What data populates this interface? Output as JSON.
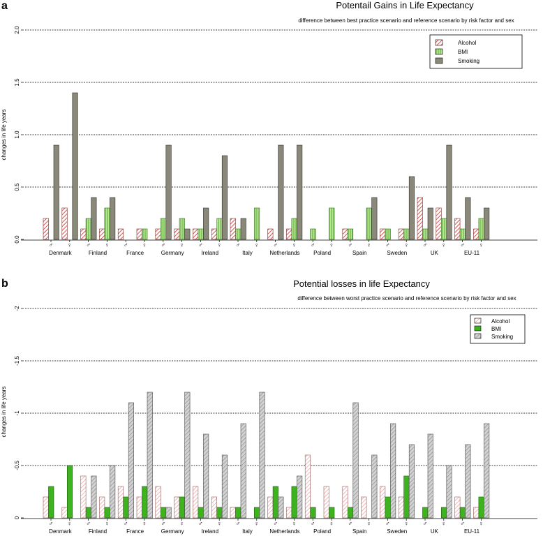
{
  "colors": {
    "a_alcohol": "#d9534f",
    "a_bmi": "#8fd16a",
    "a_smoking": "#8a8878",
    "b_alcohol": "#e8a0a0",
    "b_bmi": "#3fb31f",
    "b_smoking": "#a8a8a8"
  },
  "chart_data": [
    {
      "type": "bar",
      "panel_label": "a",
      "title": "Potentail Gains in Life Expectancy",
      "subtitle": "difference between best practice scenario and reference scenario by risk factor and sex",
      "ylabel": "changes in life years",
      "xlabel": "",
      "ylim": [
        0,
        2.0
      ],
      "yticks": [
        "0.0",
        "0.5",
        "1.0",
        "1.5",
        "2.0"
      ],
      "ytick_values": [
        0,
        0.5,
        1.0,
        1.5,
        2.0
      ],
      "grid": true,
      "legend_position": "top-right",
      "countries": [
        "Denmark",
        "Finland",
        "France",
        "Germany",
        "Ireland",
        "Italy",
        "Netherlands",
        "Poland",
        "Spain",
        "Sweden",
        "UK",
        "EU-11"
      ],
      "sexes": [
        "♂",
        "♀"
      ],
      "categories": [
        "Denmark ♂",
        "Denmark ♀",
        "Finland ♂",
        "Finland ♀",
        "France ♂",
        "France ♀",
        "Germany ♂",
        "Germany ♀",
        "Ireland ♂",
        "Ireland ♀",
        "Italy ♂",
        "Italy ♀",
        "Netherlands ♂",
        "Netherlands ♀",
        "Poland ♂",
        "Poland ♀",
        "Spain ♂",
        "Spain ♀",
        "Sweden ♂",
        "Sweden ♀",
        "UK ♂",
        "UK ♀",
        "EU-11 ♂",
        "EU-11 ♀"
      ],
      "series": [
        {
          "name": "Alcohol",
          "values": [
            0.2,
            0.3,
            0.1,
            0.1,
            0.1,
            0.1,
            0.1,
            0.1,
            0.1,
            0.1,
            0.2,
            0,
            0.1,
            0.1,
            0,
            0,
            0.1,
            0,
            0.1,
            0.1,
            0.4,
            0.3,
            0.2,
            0.1
          ]
        },
        {
          "name": "BMI",
          "values": [
            0,
            0,
            0.2,
            0.3,
            0,
            0.1,
            0.2,
            0.2,
            0.1,
            0.2,
            0.1,
            0.3,
            0,
            0.2,
            0.1,
            0.3,
            0.1,
            0.3,
            0.1,
            0.1,
            0.1,
            0.2,
            0.1,
            0.2
          ]
        },
        {
          "name": "Smoking",
          "values": [
            0.9,
            1.4,
            0.4,
            0.4,
            0,
            0,
            0.9,
            0.1,
            0.3,
            0.8,
            0.2,
            0,
            0.9,
            0.9,
            0,
            0,
            0,
            0.4,
            0,
            0.6,
            0.3,
            0.9,
            0.4,
            0.3
          ]
        }
      ]
    },
    {
      "type": "bar",
      "panel_label": "b",
      "title": "Potential losses in life Expectancy",
      "subtitle": "difference between worst practice scenario and reference scenario by risk factor and sex",
      "ylabel": "changes in life years",
      "xlabel": "",
      "ylim": [
        0,
        -2
      ],
      "yticks": [
        "0",
        "-0.5",
        "-1",
        "-1.5",
        "-2"
      ],
      "ytick_values": [
        0,
        -0.5,
        -1,
        -1.5,
        -2
      ],
      "grid": true,
      "legend_position": "top-right",
      "countries": [
        "Denmark",
        "Finland",
        "France",
        "Germany",
        "Ireland",
        "Italy",
        "Netherlands",
        "Poland",
        "Spain",
        "Sweden",
        "UK",
        "EU-11"
      ],
      "sexes": [
        "♂",
        "♀"
      ],
      "categories": [
        "Denmark ♂",
        "Denmark ♀",
        "Finland ♂",
        "Finland ♀",
        "France ♂",
        "France ♀",
        "Germany ♂",
        "Germany ♀",
        "Ireland ♂",
        "Ireland ♀",
        "Italy ♂",
        "Italy ♀",
        "Netherlands ♂",
        "Netherlands ♀",
        "Poland ♂",
        "Poland ♀",
        "Spain ♂",
        "Spain ♀",
        "Sweden ♂",
        "Sweden ♀",
        "UK ♂",
        "UK ♀",
        "EU-11 ♂",
        "EU-11 ♀"
      ],
      "series": [
        {
          "name": "Alcohol",
          "values": [
            -0.2,
            -0.1,
            -0.4,
            -0.2,
            -0.3,
            -0.2,
            -0.3,
            -0.2,
            -0.3,
            -0.2,
            -0.1,
            0,
            -0.2,
            -0.1,
            -0.6,
            -0.3,
            -0.3,
            -0.2,
            -0.3,
            -0.2,
            0,
            0,
            -0.2,
            -0.1
          ]
        },
        {
          "name": "BMI",
          "values": [
            -0.3,
            -0.5,
            -0.1,
            -0.1,
            -0.2,
            -0.3,
            -0.1,
            -0.2,
            -0.1,
            -0.1,
            -0.1,
            -0.1,
            -0.3,
            -0.3,
            -0.1,
            -0.1,
            -0.1,
            0,
            -0.2,
            -0.4,
            -0.1,
            -0.1,
            -0.1,
            -0.2
          ]
        },
        {
          "name": "Smoking",
          "values": [
            0,
            0,
            -0.4,
            -0.5,
            -1.1,
            -1.2,
            -0.1,
            -1.2,
            -0.8,
            -0.6,
            -0.9,
            -1.2,
            -0.2,
            -0.4,
            0,
            0,
            -1.1,
            -0.6,
            -0.9,
            -0.7,
            -0.8,
            -0.5,
            -0.7,
            -0.9
          ]
        }
      ]
    }
  ]
}
